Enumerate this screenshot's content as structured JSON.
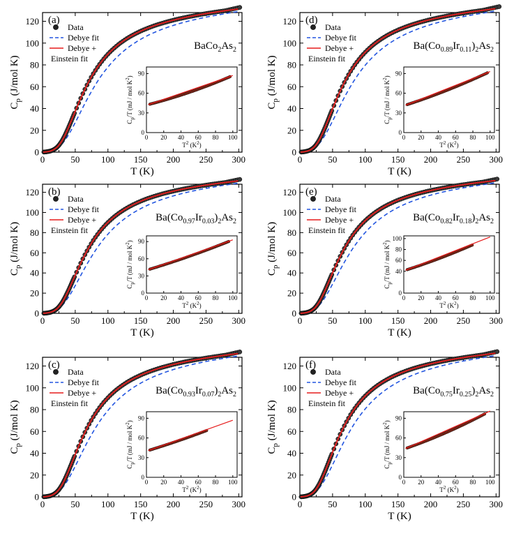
{
  "colors": {
    "data_marker_fill": "#222222",
    "debye_fit": "#2255e0",
    "debye_einstein_fit": "#e51b1b",
    "inset_marker_fill": "#8a2a1a"
  },
  "chart_data": [
    {
      "type": "scatter",
      "panel_label": "(a)",
      "compound": {
        "prefix": "BaCo",
        "sub1": "2",
        "mid": "As",
        "sub2": "2",
        "suffix": ""
      },
      "xlabel": {
        "main": "T (K)"
      },
      "ylabel": {
        "main": "C",
        "sub": "p",
        "rest": " (J/mol K)"
      },
      "xlim": [
        0,
        305
      ],
      "ylim": [
        0,
        128
      ],
      "xticks": [
        0,
        50,
        100,
        150,
        200,
        250,
        300
      ],
      "yticks": [
        0,
        20,
        40,
        60,
        80,
        100,
        120
      ],
      "legend": {
        "placement": "top-left",
        "entries": [
          "Data",
          "Debye fit",
          "Debye +",
          "Einstein fit"
        ]
      },
      "params": {
        "thetaD": 285,
        "gamma_mJ": 40,
        "debye_frac": 0.755,
        "thetaE": 215,
        "einstein_frac": 0.245,
        "data_max_T": 302
      },
      "inset": {
        "type": "scatter",
        "xlabel": {
          "main": "T",
          "sup": "2",
          "rest": " (K",
          "sup2": "2",
          "end": ")"
        },
        "ylabel": {
          "main": "C",
          "sub": "p",
          "rest": "/T (mJ / mol K",
          "sup": "2",
          "end": ")"
        },
        "xlim": [
          0,
          105
        ],
        "ylim": [
          0,
          100
        ],
        "xticks": [
          0,
          20,
          40,
          60,
          80,
          100
        ],
        "yticks": [
          0,
          30,
          60,
          90
        ],
        "fit": {
          "intercept": 42,
          "slope": 0.33,
          "curv": 0.0012,
          "x_end": 100
        },
        "data_x_range": [
          4,
          98
        ]
      }
    },
    {
      "type": "scatter",
      "panel_label": "(b)",
      "compound": {
        "prefix": "Ba(Co",
        "sub1": "0.97",
        "mid": "Ir",
        "sub2": "0.03",
        "suffix": ")",
        "sub3": "2",
        "tail": "As",
        "sub4": "2"
      },
      "xlabel": {
        "main": "T (K)"
      },
      "ylabel": {
        "main": "C",
        "sub": "p",
        "rest": " (J/mol K)"
      },
      "xlim": [
        0,
        305
      ],
      "ylim": [
        0,
        128
      ],
      "xticks": [
        0,
        50,
        100,
        150,
        200,
        250,
        300
      ],
      "yticks": [
        0,
        20,
        40,
        60,
        80,
        100,
        120
      ],
      "legend": {
        "placement": "top-left",
        "entries": [
          "Data",
          "Debye fit",
          "Debye +",
          "Einstein fit"
        ]
      },
      "params": {
        "thetaD": 283,
        "gamma_mJ": 40,
        "debye_frac": 0.755,
        "thetaE": 215,
        "einstein_frac": 0.245,
        "data_max_T": 302
      },
      "inset": {
        "type": "scatter",
        "xlabel": {
          "main": "T",
          "sup": "2",
          "rest": " (K",
          "sup2": "2",
          "end": ")"
        },
        "ylabel": {
          "main": "C",
          "sub": "p",
          "rest": "/T (mJ / mol K",
          "sup": "2",
          "end": ")"
        },
        "xlim": [
          0,
          105
        ],
        "ylim": [
          0,
          100
        ],
        "xticks": [
          0,
          20,
          40,
          60,
          80,
          100
        ],
        "yticks": [
          0,
          30,
          60,
          90
        ],
        "fit": {
          "intercept": 40,
          "slope": 0.45,
          "curv": 0.0008,
          "x_end": 100
        },
        "data_x_range": [
          4,
          96
        ]
      }
    },
    {
      "type": "scatter",
      "panel_label": "(c)",
      "compound": {
        "prefix": "Ba(Co",
        "sub1": "0.93",
        "mid": "Ir",
        "sub2": "0.07",
        "suffix": ")",
        "sub3": "2",
        "tail": "As",
        "sub4": "2"
      },
      "xlabel": {
        "main": "T (K)"
      },
      "ylabel": {
        "main": "C",
        "sub": "p",
        "rest": " (J/mol K)"
      },
      "xlim": [
        0,
        305
      ],
      "ylim": [
        0,
        128
      ],
      "xticks": [
        0,
        50,
        100,
        150,
        200,
        250,
        300
      ],
      "yticks": [
        0,
        20,
        40,
        60,
        80,
        100,
        120
      ],
      "legend": {
        "placement": "top-left",
        "entries": [
          "Data",
          "Debye fit",
          "Debye +",
          "Einstein fit"
        ]
      },
      "params": {
        "thetaD": 280,
        "gamma_mJ": 40,
        "debye_frac": 0.755,
        "thetaE": 210,
        "einstein_frac": 0.245,
        "data_max_T": 302
      },
      "inset": {
        "type": "scatter",
        "xlabel": {
          "main": "T",
          "sup": "2",
          "rest": " (K",
          "sup2": "2",
          "end": ")"
        },
        "ylabel": {
          "main": "C",
          "sub": "p",
          "rest": "/T (mJ / mol K",
          "sup": "2",
          "end": ")"
        },
        "xlim": [
          0,
          105
        ],
        "ylim": [
          0,
          100
        ],
        "xticks": [
          0,
          20,
          40,
          60,
          80,
          100
        ],
        "yticks": [
          0,
          30,
          60,
          90
        ],
        "fit": {
          "intercept": 40,
          "slope": 0.4,
          "curv": 0.0007,
          "x_end": 100
        },
        "data_x_range": [
          4,
          70
        ]
      }
    },
    {
      "type": "scatter",
      "panel_label": "(d)",
      "compound": {
        "prefix": "Ba(Co",
        "sub1": "0.89",
        "mid": "Ir",
        "sub2": "0.11",
        "suffix": ")",
        "sub3": "2",
        "tail": "As",
        "sub4": "2"
      },
      "xlabel": {
        "main": "T (K)"
      },
      "ylabel": {
        "main": "C",
        "sub": "p",
        "rest": " (J/mol K)"
      },
      "xlim": [
        0,
        305
      ],
      "ylim": [
        0,
        128
      ],
      "xticks": [
        0,
        50,
        100,
        150,
        200,
        250,
        300
      ],
      "yticks": [
        0,
        20,
        40,
        60,
        80,
        100,
        120
      ],
      "legend": {
        "placement": "top-left",
        "entries": [
          "Data",
          "Debye fit",
          "Debye +",
          "Einstein fit"
        ]
      },
      "params": {
        "thetaD": 278,
        "gamma_mJ": 40,
        "debye_frac": 0.755,
        "thetaE": 205,
        "einstein_frac": 0.245,
        "data_max_T": 305
      },
      "inset": {
        "type": "scatter",
        "xlabel": {
          "main": "T",
          "sup": "2",
          "rest": " (K",
          "sup2": "2",
          "end": ")"
        },
        "ylabel": {
          "main": "C",
          "sub": "p",
          "rest": "/T (mJ / mol K",
          "sup": "2",
          "end": ")"
        },
        "xlim": [
          0,
          105
        ],
        "ylim": [
          0,
          100
        ],
        "xticks": [
          0,
          20,
          40,
          60,
          80,
          100
        ],
        "yticks": [
          0,
          30,
          60,
          90
        ],
        "fit": {
          "intercept": 41,
          "slope": 0.42,
          "curv": 0.001,
          "x_end": 100
        },
        "data_x_range": [
          4,
          98
        ]
      }
    },
    {
      "type": "scatter",
      "panel_label": "(e)",
      "compound": {
        "prefix": "Ba(Co",
        "sub1": "0.82",
        "mid": "Ir",
        "sub2": "0.18",
        "suffix": ")",
        "sub3": "2",
        "tail": "As",
        "sub4": "2"
      },
      "xlabel": {
        "main": "T (K)"
      },
      "ylabel": {
        "main": "C",
        "sub": "p",
        "rest": " (J/mol K)"
      },
      "xlim": [
        0,
        305
      ],
      "ylim": [
        0,
        128
      ],
      "xticks": [
        0,
        50,
        100,
        150,
        200,
        250,
        300
      ],
      "yticks": [
        0,
        20,
        40,
        60,
        80,
        100,
        120
      ],
      "legend": {
        "placement": "top-left",
        "entries": [
          "Data",
          "Debye fit",
          "Debye +",
          "Einstein fit"
        ]
      },
      "params": {
        "thetaD": 276,
        "gamma_mJ": 40,
        "debye_frac": 0.755,
        "thetaE": 205,
        "einstein_frac": 0.245,
        "data_max_T": 302
      },
      "inset": {
        "type": "scatter",
        "xlabel": {
          "main": "T",
          "sup": "2",
          "rest": " (K",
          "sup2": "2",
          "end": ")"
        },
        "ylabel": {
          "main": "C",
          "sub": "p",
          "rest": "/T (mJ / mol K",
          "sup": "2",
          "end": ")"
        },
        "xlim": [
          0,
          105
        ],
        "ylim": [
          0,
          105
        ],
        "xticks": [
          0,
          20,
          40,
          60,
          80,
          100
        ],
        "yticks": [
          0,
          40,
          60,
          80,
          100
        ],
        "fit": {
          "intercept": 41,
          "slope": 0.5,
          "curv": 0.0012,
          "x_end": 100
        },
        "data_x_range": [
          4,
          80
        ]
      }
    },
    {
      "type": "scatter",
      "panel_label": "(f)",
      "compound": {
        "prefix": "Ba(Co",
        "sub1": "0.75",
        "mid": "Ir",
        "sub2": "0.25",
        "suffix": ")",
        "sub3": "2",
        "tail": "As",
        "sub4": "2"
      },
      "xlabel": {
        "main": "T (K)"
      },
      "ylabel": {
        "main": "C",
        "sub": "p",
        "rest": " (J/mol K)"
      },
      "xlim": [
        0,
        305
      ],
      "ylim": [
        0,
        128
      ],
      "xticks": [
        0,
        50,
        100,
        150,
        200,
        250,
        300
      ],
      "yticks": [
        0,
        20,
        40,
        60,
        80,
        100,
        120
      ],
      "legend": {
        "placement": "top-left",
        "entries": [
          "Data",
          "Debye fit",
          "Debye +",
          "Einstein fit"
        ]
      },
      "params": {
        "thetaD": 274,
        "gamma_mJ": 40,
        "debye_frac": 0.755,
        "thetaE": 200,
        "einstein_frac": 0.245,
        "data_max_T": 302
      },
      "inset": {
        "type": "scatter",
        "xlabel": {
          "main": "T",
          "sup": "2",
          "rest": " (K",
          "sup2": "2",
          "end": ")"
        },
        "ylabel": {
          "main": "C",
          "sub": "p",
          "rest": "/T (mJ / mol K",
          "sup": "2",
          "end": ")"
        },
        "xlim": [
          0,
          105
        ],
        "ylim": [
          0,
          100
        ],
        "xticks": [
          0,
          20,
          40,
          60,
          80,
          100
        ],
        "yticks": [
          0,
          30,
          60,
          90
        ],
        "fit": {
          "intercept": 43,
          "slope": 0.45,
          "curv": 0.0013,
          "x_end": 100
        },
        "data_x_range": [
          4,
          95
        ]
      }
    }
  ]
}
